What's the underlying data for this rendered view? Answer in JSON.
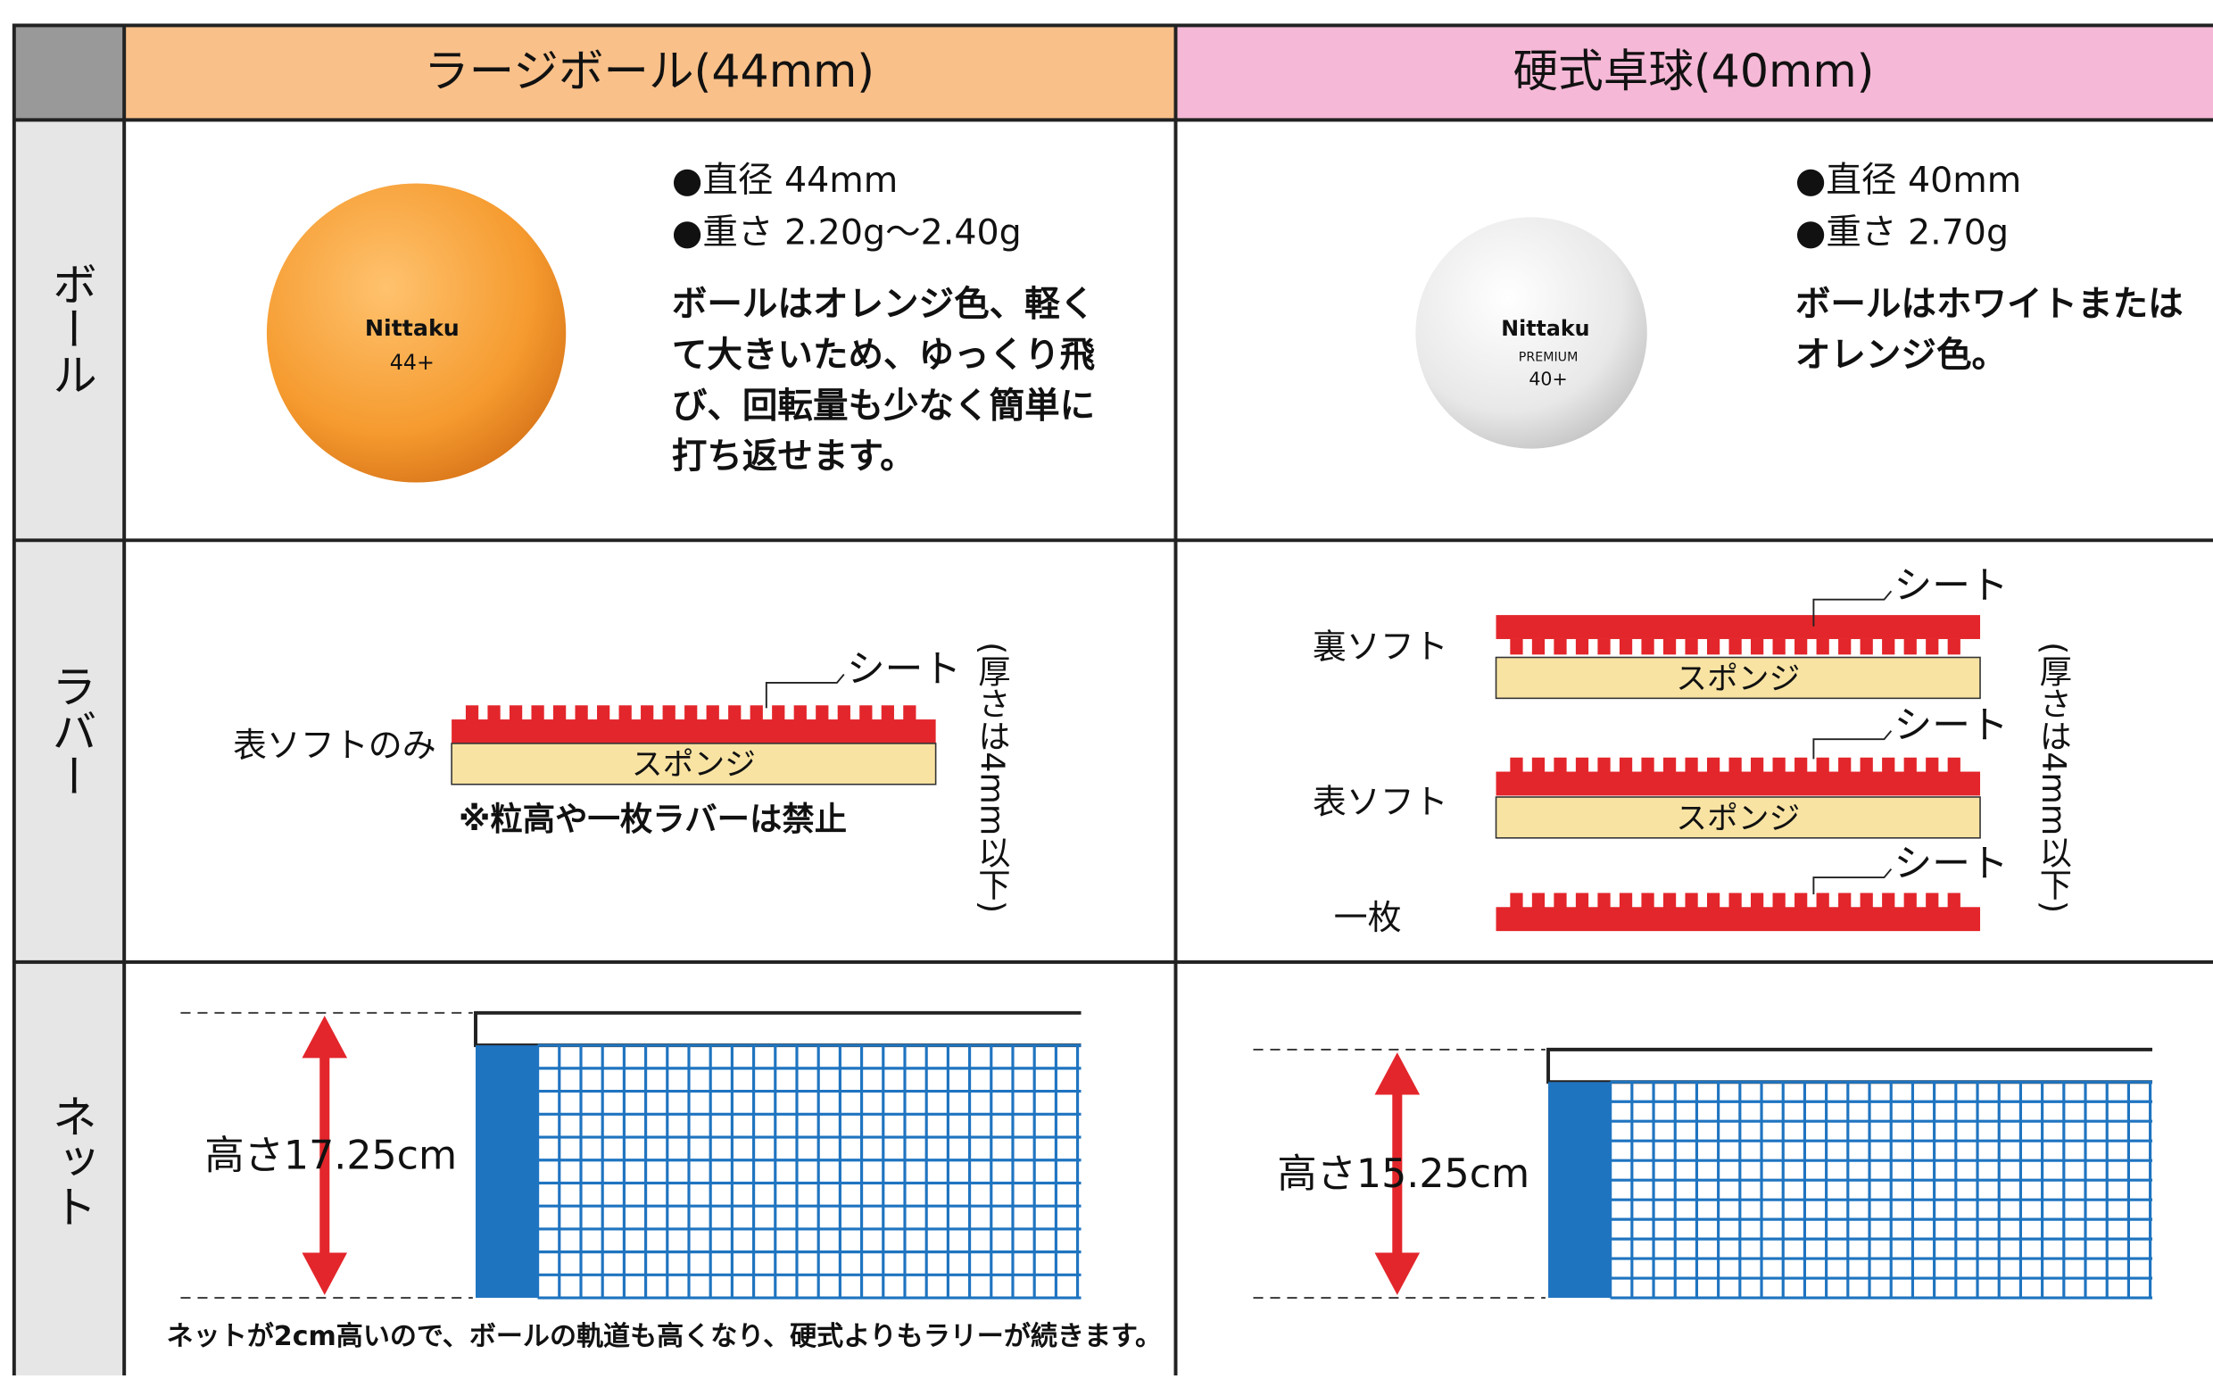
{
  "header": {
    "large_ball": "ラージボール(44mm)",
    "hard_ball": "硬式卓球(40mm)"
  },
  "row_labels": {
    "ball": "ボール",
    "rubber": "ラバー",
    "net": "ネット"
  },
  "ball": {
    "large": {
      "diameter": "●直径 44mm",
      "weight": "●重さ 2.20g〜2.40g",
      "description": [
        "ボールはオレンジ色、軽く",
        "て大きいため、ゆっくり飛",
        "び、回転量も少なく簡単に",
        "打ち返せます。"
      ],
      "print": {
        "brand": "Nittaku",
        "model": "44+"
      }
    },
    "hard": {
      "diameter": "●直径 40mm",
      "weight": "●重さ 2.70g",
      "description": [
        "ボールはホワイトまたは",
        "オレンジ色。"
      ],
      "print": {
        "brand": "Nittaku",
        "grade": "PREMIUM",
        "model": "40+"
      }
    }
  },
  "rubber": {
    "large": {
      "type": "表ソフトのみ",
      "sheet": "シート",
      "sponge": "スポンジ",
      "note": "※粒高や一枚ラバーは禁止",
      "thickness": "(厚さは4mm以下)"
    },
    "hard": {
      "types": [
        {
          "label": "裏ソフト",
          "sheet": "シート",
          "sponge": "スポンジ"
        },
        {
          "label": "表ソフト",
          "sheet": "シート",
          "sponge": "スポンジ"
        },
        {
          "label": "一枚",
          "sheet": "シート"
        }
      ],
      "thickness": "(厚さは4mm以下)"
    }
  },
  "net": {
    "large": {
      "height": "高さ17.25cm",
      "note": "ネットが2cm高いので、ボールの軌道も高くなり、硬式よりもラリーが続きます。"
    },
    "hard": {
      "height": "高さ15.25cm"
    }
  }
}
